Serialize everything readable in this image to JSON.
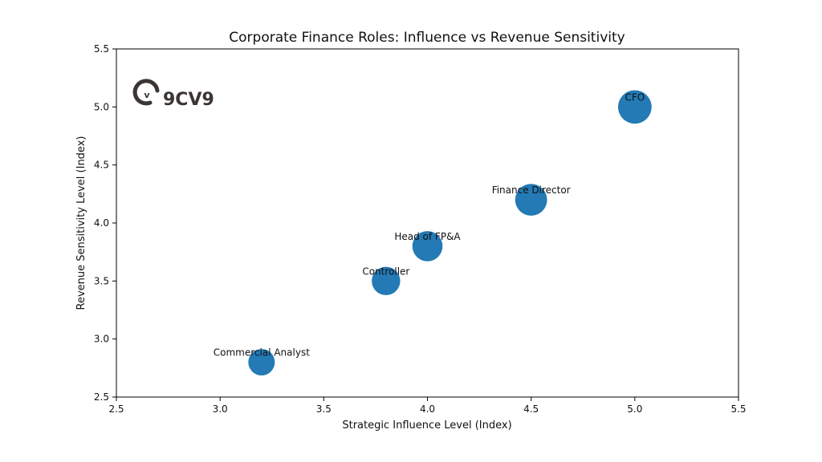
{
  "chart_data": {
    "type": "scatter",
    "title": "Corporate Finance Roles: Influence vs Revenue Sensitivity",
    "xlabel": "Strategic Influence Level (Index)",
    "ylabel": "Revenue Sensitivity Level (Index)",
    "xlim": [
      2.5,
      5.5
    ],
    "ylim": [
      2.5,
      5.5
    ],
    "xticks": [
      "2.5",
      "3.0",
      "3.5",
      "4.0",
      "4.5",
      "5.0",
      "5.5"
    ],
    "yticks": [
      "2.5",
      "3.0",
      "3.5",
      "4.0",
      "4.5",
      "5.0",
      "5.5"
    ],
    "grid": false,
    "marker_color": "#1f77b4",
    "points": [
      {
        "label": "Commercial Analyst",
        "x": 3.2,
        "y": 2.8,
        "relative_size": 1.0
      },
      {
        "label": "Controller",
        "x": 3.8,
        "y": 3.5,
        "relative_size": 1.15
      },
      {
        "label": "Head of FP&A",
        "x": 4.0,
        "y": 3.8,
        "relative_size": 1.3
      },
      {
        "label": "Finance Director",
        "x": 4.5,
        "y": 4.2,
        "relative_size": 1.45
      },
      {
        "label": "CFO",
        "x": 5.0,
        "y": 5.0,
        "relative_size": 1.6
      }
    ]
  },
  "logo": {
    "text": "9CV9",
    "icon": "9cv9-logo-icon"
  }
}
